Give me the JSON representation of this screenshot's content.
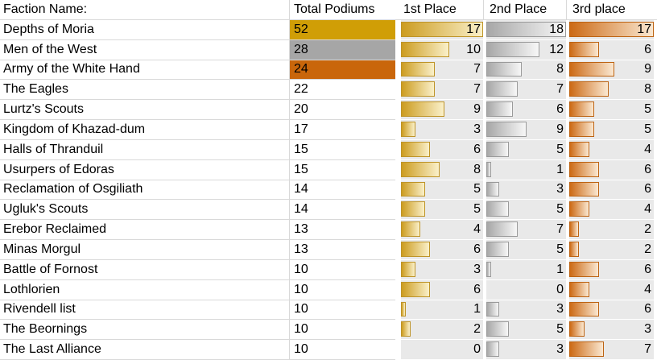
{
  "chart_data": {
    "type": "table",
    "title": "Faction podium results table with conditional-formatting data bars",
    "columns": [
      "Faction Name:",
      "Total Podiums",
      "1st Place",
      "2nd Place",
      "3rd place"
    ],
    "rows": [
      {
        "faction": "Depths of Moria",
        "total": 52,
        "total_fill": "gold",
        "first": 17,
        "second": 18,
        "third": 17
      },
      {
        "faction": "Men of the West",
        "total": 28,
        "total_fill": "silver",
        "first": 10,
        "second": 12,
        "third": 6
      },
      {
        "faction": "Army of the White Hand",
        "total": 24,
        "total_fill": "bronze",
        "first": 7,
        "second": 8,
        "third": 9
      },
      {
        "faction": "The Eagles",
        "total": 22,
        "total_fill": null,
        "first": 7,
        "second": 7,
        "third": 8
      },
      {
        "faction": "Lurtz's Scouts",
        "total": 20,
        "total_fill": null,
        "first": 9,
        "second": 6,
        "third": 5
      },
      {
        "faction": "Kingdom of Khazad-dum",
        "total": 17,
        "total_fill": null,
        "first": 3,
        "second": 9,
        "third": 5
      },
      {
        "faction": "Halls of Thranduil",
        "total": 15,
        "total_fill": null,
        "first": 6,
        "second": 5,
        "third": 4
      },
      {
        "faction": "Usurpers of Edoras",
        "total": 15,
        "total_fill": null,
        "first": 8,
        "second": 1,
        "third": 6
      },
      {
        "faction": "Reclamation of Osgiliath",
        "total": 14,
        "total_fill": null,
        "first": 5,
        "second": 3,
        "third": 6
      },
      {
        "faction": "Ugluk's Scouts",
        "total": 14,
        "total_fill": null,
        "first": 5,
        "second": 5,
        "third": 4
      },
      {
        "faction": "Erebor Reclaimed",
        "total": 13,
        "total_fill": null,
        "first": 4,
        "second": 7,
        "third": 2
      },
      {
        "faction": "Minas Morgul",
        "total": 13,
        "total_fill": null,
        "first": 6,
        "second": 5,
        "third": 2
      },
      {
        "faction": "Battle of Fornost",
        "total": 10,
        "total_fill": null,
        "first": 3,
        "second": 1,
        "third": 6
      },
      {
        "faction": "Lothlorien",
        "total": 10,
        "total_fill": null,
        "first": 6,
        "second": 0,
        "third": 4
      },
      {
        "faction": "Rivendell list",
        "total": 10,
        "total_fill": null,
        "first": 1,
        "second": 3,
        "third": 6
      },
      {
        "faction": "The Beornings",
        "total": 10,
        "total_fill": null,
        "first": 2,
        "second": 5,
        "third": 3
      },
      {
        "faction": "The Last Alliance",
        "total": 10,
        "total_fill": null,
        "first": 0,
        "second": 3,
        "third": 7
      }
    ],
    "databar_max": {
      "first": 17,
      "second": 18,
      "third": 17
    },
    "layout_hints": {
      "databars": "proportional to value / column max, zero value = no bar",
      "value_alignment": "right",
      "grid": "light gridlines; place columns have gray panel background"
    },
    "colors": {
      "total_fills": {
        "gold": "#D09E06",
        "silver": "#A6A6A6",
        "bronze": "#C9660B"
      },
      "bar_first": {
        "start": "#CC9C20",
        "end": "#FAF0C9",
        "border": "#BE9428"
      },
      "bar_second": {
        "start": "#A7A7A7",
        "end": "#F7F7F7",
        "border": "#9A9A9A"
      },
      "bar_third": {
        "start": "#CC6A15",
        "end": "#FAE8D2",
        "border": "#BD6312"
      },
      "panel_bg": "#E9E9E9",
      "gridline": "#D9D9D9",
      "text": "#000000"
    }
  }
}
